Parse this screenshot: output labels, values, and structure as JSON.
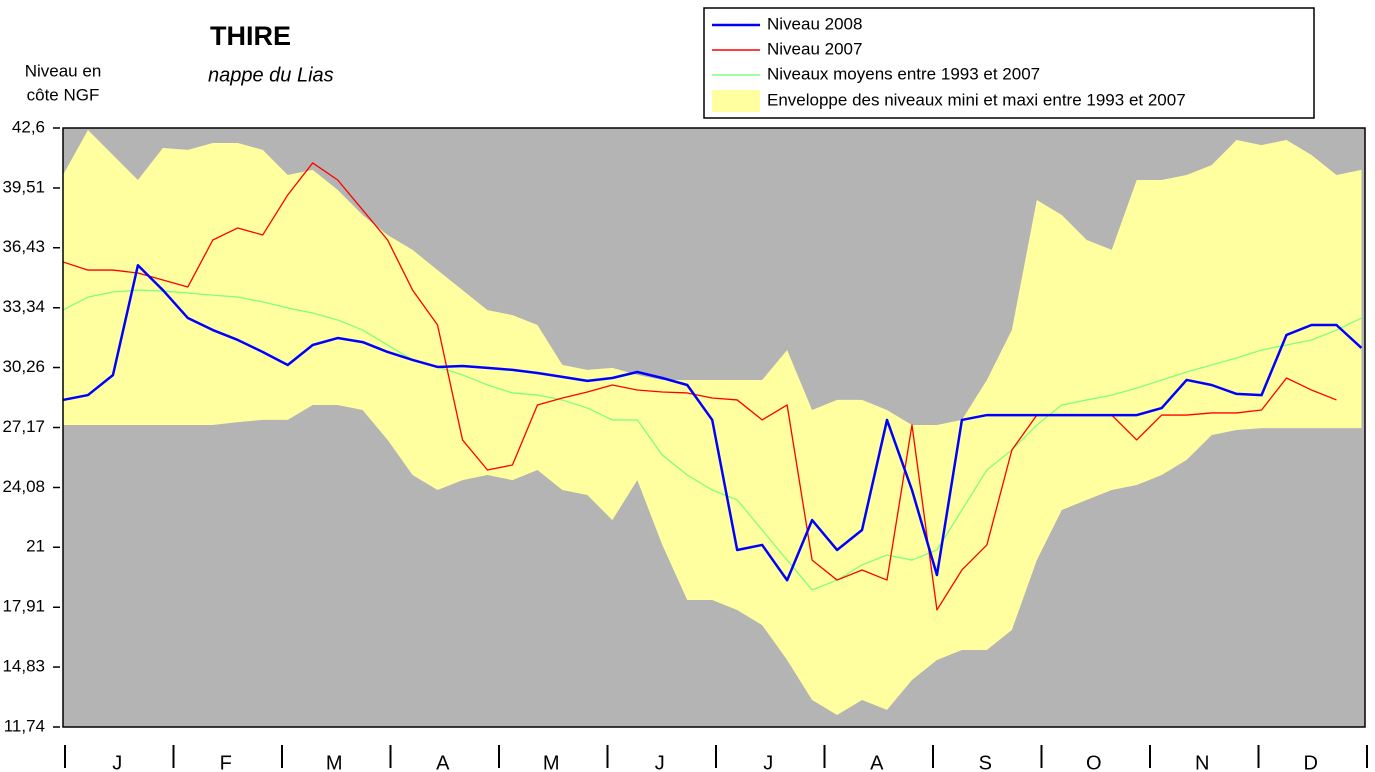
{
  "chart_data": {
    "type": "line",
    "title": "THIRE",
    "subtitle": "nappe du Lias",
    "y_label": [
      "Niveau en",
      "côte NGF"
    ],
    "categories": [
      "J",
      "F",
      "M",
      "A",
      "M",
      "J",
      "J",
      "A",
      "S",
      "O",
      "N",
      "D"
    ],
    "x": [
      0,
      7,
      14,
      21,
      28,
      35,
      42,
      49,
      56,
      63,
      70,
      77,
      84,
      91,
      98,
      105,
      112,
      119,
      126,
      133,
      140,
      147,
      154,
      161,
      168,
      175,
      182,
      189,
      196,
      203,
      210,
      217,
      224,
      231,
      238,
      245,
      252,
      259,
      266,
      273,
      280,
      287,
      294,
      301,
      308,
      315,
      322,
      329,
      336,
      343,
      350,
      357,
      364
    ],
    "xlim": [
      0,
      365
    ],
    "ylim": [
      11.74,
      42.6
    ],
    "yticks": [
      {
        "value": 42.6,
        "label": "42,6"
      },
      {
        "value": 39.51,
        "label": "39,51"
      },
      {
        "value": 36.43,
        "label": "36,43"
      },
      {
        "value": 33.34,
        "label": "33,34"
      },
      {
        "value": 30.26,
        "label": "30,26"
      },
      {
        "value": 27.17,
        "label": "27,17"
      },
      {
        "value": 24.08,
        "label": "24,08"
      },
      21,
      {
        "value": 17.91,
        "label": "17,91"
      },
      {
        "value": 14.83,
        "label": "14,83"
      },
      {
        "value": 11.74,
        "label": "11,74"
      }
    ],
    "background": "#b4b4b4",
    "series": [
      {
        "name": "Niveau 2008",
        "color": "#0000ff",
        "values": [
          28.59,
          28.84,
          29.87,
          35.53,
          34.25,
          32.81,
          32.19,
          31.68,
          31.06,
          30.39,
          31.42,
          31.78,
          31.57,
          31.06,
          30.65,
          30.29,
          30.34,
          30.24,
          30.14,
          29.98,
          29.78,
          29.57,
          29.72,
          30.03,
          29.72,
          29.36,
          27.56,
          20.86,
          21.12,
          19.3,
          22.4,
          20.86,
          21.89,
          27.56,
          23.95,
          19.57,
          27.56,
          27.81,
          27.81,
          27.81,
          27.81,
          27.81,
          27.81,
          27.81,
          28.17,
          29.62,
          29.36,
          28.9,
          28.84,
          31.94,
          32.45,
          32.45,
          31.27
        ]
      },
      {
        "name": "Niveau 2007",
        "color": "#ff0000",
        "values": [
          35.7,
          35.28,
          35.28,
          35.13,
          34.77,
          34.41,
          36.83,
          37.45,
          37.09,
          39.15,
          40.8,
          39.92,
          38.38,
          36.83,
          34.25,
          32.45,
          26.53,
          24.98,
          25.24,
          28.33,
          28.69,
          29.0,
          29.36,
          29.1,
          29.0,
          28.95,
          28.69,
          28.59,
          27.56,
          28.33,
          20.34,
          19.31,
          19.83,
          19.31,
          27.3,
          17.77,
          19.83,
          21.12,
          26.01,
          27.81,
          27.81,
          27.81,
          27.81,
          26.53,
          27.81,
          27.81,
          27.92,
          27.92,
          28.07,
          29.72,
          29.1,
          28.59,
          null
        ]
      },
      {
        "name": "Niveaux moyens entre 1993 et 2007",
        "color": "#80ff80",
        "values": [
          33.22,
          33.89,
          34.15,
          34.25,
          34.2,
          34.1,
          33.99,
          33.89,
          33.64,
          33.33,
          33.07,
          32.71,
          32.19,
          31.42,
          30.65,
          30.29,
          29.88,
          29.36,
          28.95,
          28.84,
          28.59,
          28.17,
          27.56,
          27.56,
          25.75,
          24.72,
          23.95,
          23.44,
          21.89,
          20.34,
          18.8,
          19.31,
          20.09,
          20.6,
          20.34,
          20.86,
          22.92,
          24.98,
          26.01,
          27.3,
          28.33,
          28.59,
          28.84,
          29.2,
          29.62,
          30.03,
          30.39,
          30.75,
          31.16,
          31.42,
          31.68,
          32.19,
          32.81
        ]
      },
      {
        "name": "Enveloppe des niveaux mini et maxi entre 1993 et 2007",
        "color": "#ffffa0",
        "low": [
          27.3,
          27.3,
          27.3,
          27.3,
          27.3,
          27.3,
          27.3,
          27.45,
          27.56,
          27.56,
          28.33,
          28.33,
          28.07,
          26.53,
          24.72,
          23.95,
          24.46,
          24.72,
          24.46,
          24.98,
          23.95,
          23.69,
          22.4,
          24.46,
          21.12,
          18.28,
          18.28,
          17.77,
          16.99,
          15.19,
          13.13,
          12.36,
          13.13,
          12.62,
          14.16,
          15.19,
          15.71,
          15.71,
          16.74,
          20.34,
          22.92,
          23.44,
          23.95,
          24.21,
          24.72,
          25.5,
          26.78,
          27.04,
          27.14,
          27.14,
          27.14,
          27.14,
          27.14
        ],
        "high": [
          40.18,
          42.5,
          41.21,
          39.92,
          41.57,
          41.47,
          41.83,
          41.83,
          41.47,
          40.18,
          40.44,
          39.41,
          38.12,
          37.09,
          36.32,
          35.28,
          34.25,
          33.22,
          32.96,
          32.45,
          30.39,
          30.14,
          30.24,
          29.88,
          29.62,
          29.62,
          29.62,
          29.62,
          29.62,
          31.16,
          28.07,
          28.59,
          28.59,
          28.07,
          27.3,
          27.3,
          27.56,
          29.62,
          32.19,
          38.89,
          38.12,
          36.83,
          36.32,
          39.92,
          39.92,
          40.18,
          40.69,
          41.98,
          41.72,
          41.98,
          41.21,
          40.18,
          40.44
        ]
      }
    ]
  }
}
